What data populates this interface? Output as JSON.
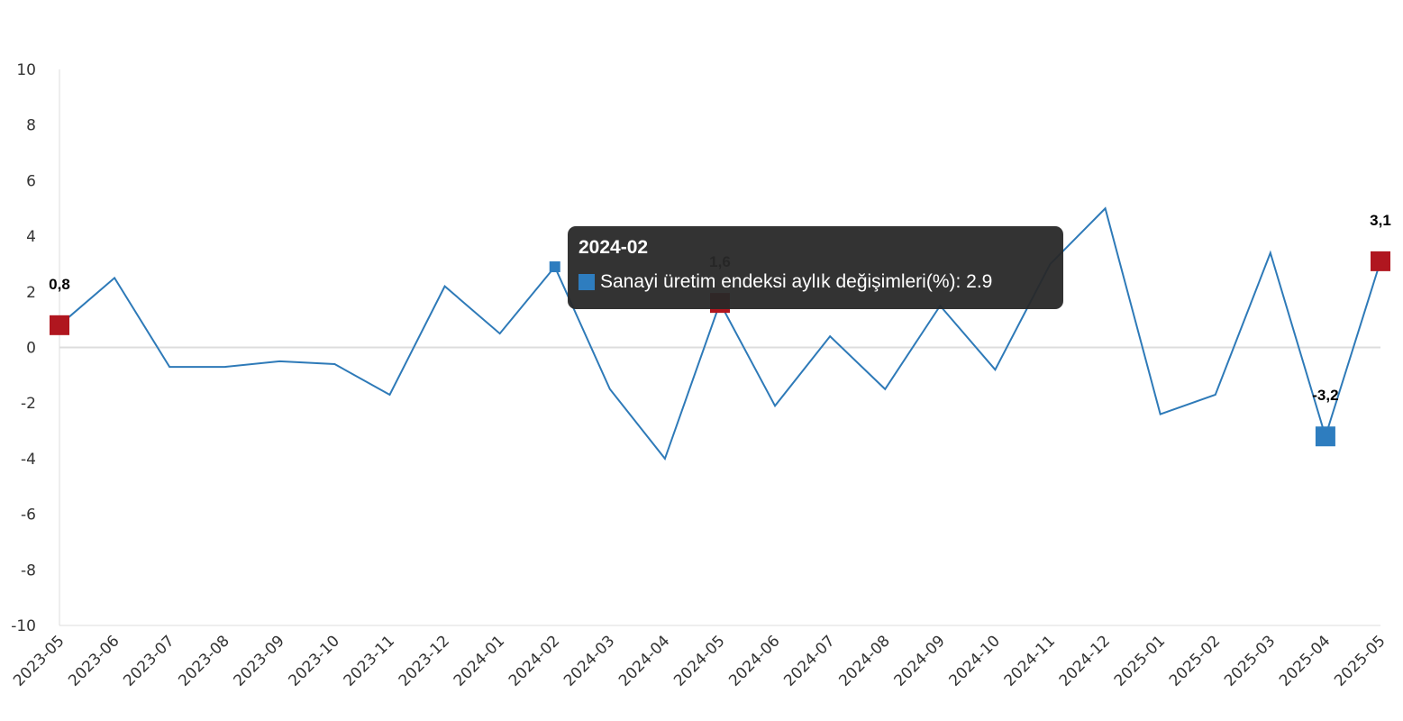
{
  "chart_data": {
    "type": "line",
    "categories": [
      "2023-05",
      "2023-06",
      "2023-07",
      "2023-08",
      "2023-09",
      "2023-10",
      "2023-11",
      "2023-12",
      "2024-01",
      "2024-02",
      "2024-03",
      "2024-04",
      "2024-05",
      "2024-06",
      "2024-07",
      "2024-08",
      "2024-09",
      "2024-10",
      "2024-11",
      "2024-12",
      "2025-01",
      "2025-02",
      "2025-03",
      "2025-04",
      "2025-05"
    ],
    "values": [
      0.8,
      2.5,
      -0.7,
      -0.7,
      -0.5,
      -0.6,
      -1.7,
      2.2,
      0.5,
      2.9,
      -1.5,
      -4.0,
      1.6,
      -2.1,
      0.4,
      -1.5,
      1.5,
      -0.8,
      3.0,
      5.0,
      -2.4,
      -1.7,
      3.4,
      -3.2,
      3.1
    ],
    "value_labels": [
      "0,8",
      null,
      null,
      null,
      null,
      null,
      null,
      null,
      null,
      null,
      null,
      null,
      "1,6",
      null,
      null,
      null,
      null,
      null,
      null,
      null,
      null,
      null,
      null,
      "-3,2",
      "3,1"
    ],
    "marker_colors": [
      "#b0161f",
      null,
      null,
      null,
      null,
      null,
      null,
      null,
      null,
      "#2e7dbf",
      null,
      null,
      "#b0161f",
      null,
      null,
      null,
      null,
      null,
      null,
      null,
      null,
      null,
      null,
      "#2e7dbf",
      "#b0161f"
    ],
    "color": "#2e7ab8",
    "ylim": [
      -10,
      10
    ],
    "yticks": [
      -10,
      -8,
      -6,
      -4,
      -2,
      0,
      2,
      4,
      6,
      8,
      10
    ],
    "grid": false,
    "tooltip": {
      "title": "2024-02",
      "text": "Sanayi üretim endeksi aylık değişimleri(%): 2.9",
      "color": "#2e7dbf"
    }
  }
}
